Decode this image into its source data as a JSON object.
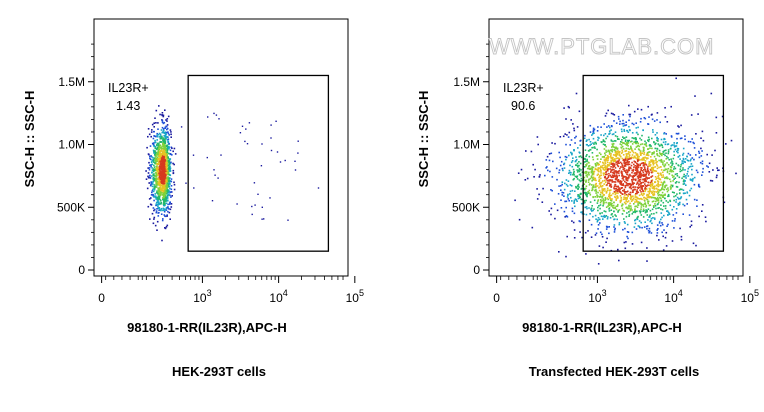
{
  "watermark": "WWW.PTGLAB.COM",
  "chart_data": [
    {
      "type": "scatter",
      "title": "HEK-293T cells",
      "xlabel": "98180-1-RR(IL23R),APC-H",
      "ylabel": "SSC-H :: SSC-H",
      "y_ticks": [
        "0",
        "500K",
        "1.0M",
        "1.5M"
      ],
      "y_tick_values": [
        0,
        500000,
        1000000,
        1500000
      ],
      "x_ticks": [
        {
          "base": "0",
          "exp": ""
        },
        {
          "base": "10",
          "exp": "3"
        },
        {
          "base": "10",
          "exp": "4"
        },
        {
          "base": "10",
          "exp": "5"
        }
      ],
      "x_tick_values": [
        0,
        1000,
        10000,
        100000
      ],
      "x_scale": "biexponential",
      "ylim": [
        0,
        2000000
      ],
      "gate": {
        "name": "IL23R+",
        "percent": "1.43",
        "x_range": [
          650,
          45000
        ],
        "y_range": [
          150000,
          1550000
        ]
      },
      "population": {
        "center_x": 300,
        "center_y": 800000,
        "y_spread": 170000,
        "x_spread_log10": 0.05,
        "shape": "tight vertical column (negative population)"
      }
    },
    {
      "type": "scatter",
      "title": "Transfected HEK-293T cells",
      "xlabel": "98180-1-RR(IL23R),APC-H",
      "ylabel": "SSC-H :: SSC-H",
      "y_ticks": [
        "0",
        "500K",
        "1.0M",
        "1.5M"
      ],
      "y_tick_values": [
        0,
        500000,
        1000000,
        1500000
      ],
      "x_ticks": [
        {
          "base": "0",
          "exp": ""
        },
        {
          "base": "10",
          "exp": "3"
        },
        {
          "base": "10",
          "exp": "4"
        },
        {
          "base": "10",
          "exp": "5"
        }
      ],
      "x_tick_values": [
        0,
        1000,
        10000,
        100000
      ],
      "x_scale": "biexponential",
      "ylim": [
        0,
        2000000
      ],
      "gate": {
        "name": "IL23R+",
        "percent": "90.6",
        "x_range": [
          650,
          45000
        ],
        "y_range": [
          150000,
          1550000
        ]
      },
      "population": {
        "center_x": 2500,
        "center_y": 750000,
        "y_spread": 210000,
        "x_spread_log10": 0.45,
        "shape": "broad positive cloud"
      }
    }
  ]
}
